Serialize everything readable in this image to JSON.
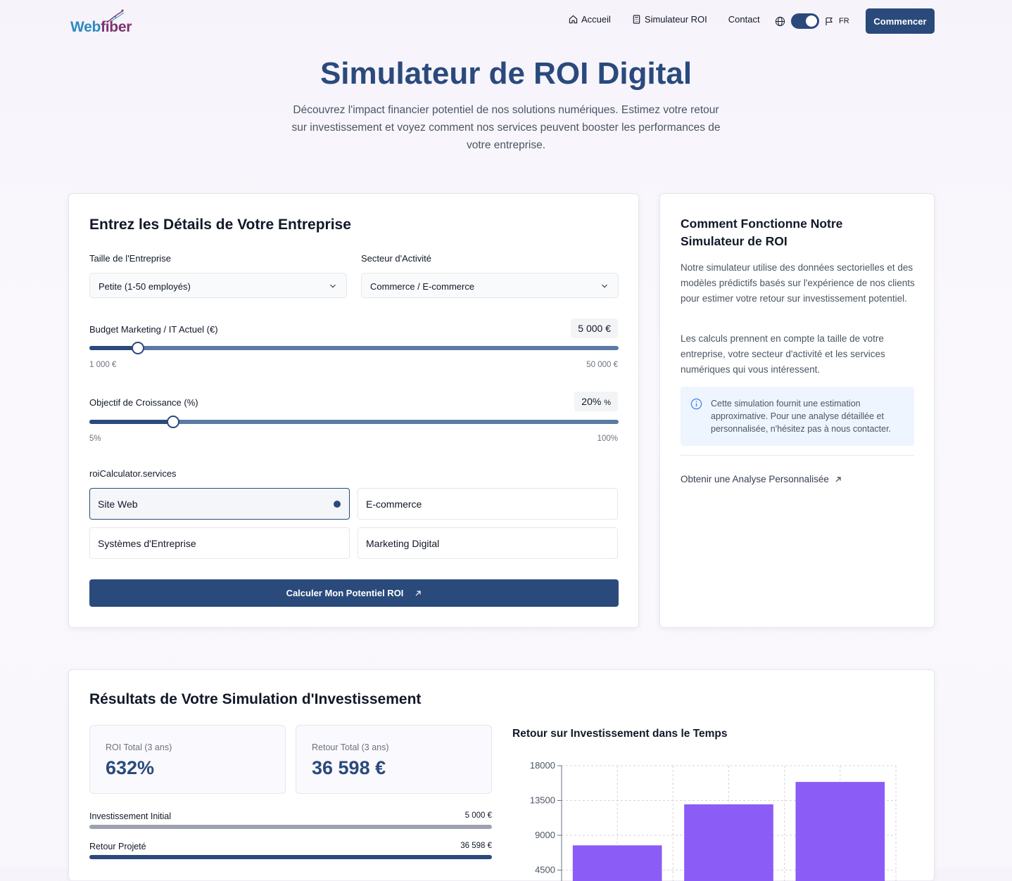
{
  "header": {
    "logo": {
      "part1": "Web",
      "part2": "fiber"
    },
    "nav": [
      {
        "label": "Accueil",
        "icon": "home-icon"
      },
      {
        "label": "Simulateur ROI",
        "icon": "calculator-icon"
      },
      {
        "label": "Contact",
        "icon": ""
      }
    ],
    "language": "FR",
    "cta_label": "Commencer"
  },
  "hero": {
    "title": "Simulateur de ROI Digital",
    "subtitle": "Découvrez l'impact financier potentiel de nos solutions numériques. Estimez votre retour sur investissement et voyez comment nos services peuvent booster les performances de votre entreprise."
  },
  "form": {
    "title": "Entrez les Détails de Votre Entreprise",
    "company_size": {
      "label": "Taille de l'Entreprise",
      "value": "Petite (1-50 employés)"
    },
    "sector": {
      "label": "Secteur d'Activité",
      "value": "Commerce / E-commerce"
    },
    "budget": {
      "label": "Budget Marketing / IT Actuel (€)",
      "value": "5 000 €",
      "min_label": "1 000 €",
      "max_label": "50 000 €",
      "min": 1000,
      "max": 50000,
      "current": 5000
    },
    "growth": {
      "label": "Objectif de Croissance (%)",
      "value": "20%",
      "unit": "%",
      "min_label": "5%",
      "max_label": "100%",
      "min": 5,
      "max": 100,
      "current": 20
    },
    "services_label": "roiCalculator.services",
    "services": [
      {
        "label": "Site Web",
        "selected": true
      },
      {
        "label": "E-commerce",
        "selected": false
      },
      {
        "label": "Systèmes d'Entreprise",
        "selected": false
      },
      {
        "label": "Marketing Digital",
        "selected": false
      }
    ],
    "submit_label": "Calculer Mon Potentiel ROI"
  },
  "info": {
    "title": "Comment Fonctionne Notre Simulateur de ROI",
    "paragraph1": "Notre simulateur utilise des données sectorielles et des modèles prédictifs basés sur l'expérience de nos clients pour estimer votre retour sur investissement potentiel.",
    "paragraph2": "Les calculs prennent en compte la taille de votre entreprise, votre secteur d'activité et les services numériques qui vous intéressent.",
    "note": "Cette simulation fournit une estimation approximative. Pour une analyse détaillée et personnalisée, n'hésitez pas à nous contacter.",
    "link_label": "Obtenir une Analyse Personnalisée"
  },
  "results": {
    "title": "Résultats de Votre Simulation d'Investissement",
    "roi": {
      "label": "ROI Total (3 ans)",
      "value": "632%"
    },
    "return": {
      "label": "Retour Total (3 ans)",
      "value": "36 598 €"
    },
    "initial": {
      "label": "Investissement Initial",
      "value": "5 000 €",
      "amount": 5000
    },
    "projected": {
      "label": "Retour Projeté",
      "value": "36 598 €",
      "amount": 36598
    },
    "chart_title": "Retour sur Investissement dans le Temps"
  },
  "colors": {
    "primary": "#2a4a7c",
    "bar": "#8b5cf6",
    "grey_bar": "#9ca3af"
  },
  "chart_data": {
    "type": "bar",
    "title": "Retour sur Investissement dans le Temps",
    "categories": [
      "",
      "",
      ""
    ],
    "values": [
      7700,
      13000,
      15900
    ],
    "yticks": [
      4500,
      9000,
      13500,
      18000
    ],
    "ylim": [
      0,
      18000
    ],
    "grid": true
  }
}
